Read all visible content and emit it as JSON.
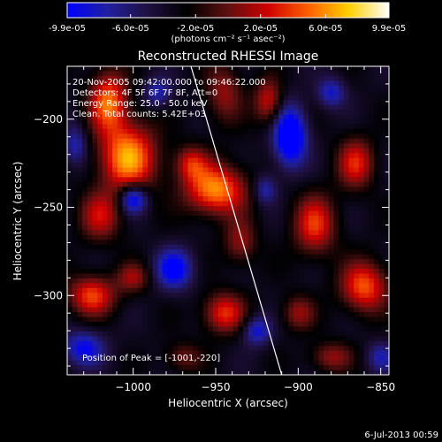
{
  "colorbar": {
    "tick_labels": [
      "-9.9e-05",
      "-6.0e-05",
      "-2.0e-05",
      "2.0e-05",
      "6.0e-05",
      "9.9e-05"
    ],
    "tick_values": [
      -9.9e-05,
      -6e-05,
      -2e-05,
      2e-05,
      6e-05,
      9.9e-05
    ],
    "range": [
      -9.9e-05,
      9.9e-05
    ],
    "units": "(photons cm⁻² s⁻¹ asec⁻²)",
    "colors": [
      "#0000ff",
      "#2020a0",
      "#201040",
      "#000000",
      "#601010",
      "#d00000",
      "#ff6000",
      "#ffd000",
      "#ffffff"
    ]
  },
  "chart_data": {
    "type": "heatmap",
    "title": "Reconstructed RHESSI Image",
    "xlabel": "Heliocentric X (arcsec)",
    "ylabel": "Heliocentric Y (arcsec)",
    "xlim": [
      -1040,
      -845
    ],
    "ylim": [
      -345,
      -170
    ],
    "x_ticks": [
      -1000,
      -950,
      -900,
      -850
    ],
    "x_tick_labels": [
      "−1000",
      "−950",
      "−900",
      "−850"
    ],
    "y_ticks": [
      -200,
      -250,
      -300
    ],
    "y_tick_labels": [
      "−200",
      "−250",
      "−300"
    ],
    "annotations": [
      "20-Nov-2005 09:42:00.000 to 09:46:22.000",
      "Detectors: 4F 5F 6F 7F 8F, Att=0",
      "Energy Range: 25.0 - 50.0 keV",
      "Clean.  Total counts: 5.42E+03"
    ],
    "peak_label": "Position of Peak = [-1001,-220]",
    "peak": {
      "x": -1001,
      "y": -220
    },
    "limb_line": [
      [
        -965,
        -170
      ],
      [
        -910,
        -345
      ]
    ],
    "blobs": [
      {
        "x": -1003,
        "y": -222,
        "sx": 12,
        "sy": 14,
        "a": 1.0
      },
      {
        "x": -1015,
        "y": -190,
        "sx": 8,
        "sy": 12,
        "a": 0.85
      },
      {
        "x": -1020,
        "y": -255,
        "sx": 9,
        "sy": 10,
        "a": 0.55
      },
      {
        "x": -1025,
        "y": -300,
        "sx": 10,
        "sy": 8,
        "a": 0.75
      },
      {
        "x": -1000,
        "y": -290,
        "sx": 7,
        "sy": 6,
        "a": 0.45
      },
      {
        "x": -950,
        "y": -240,
        "sx": 13,
        "sy": 10,
        "a": 0.95
      },
      {
        "x": -965,
        "y": -225,
        "sx": 7,
        "sy": 7,
        "a": 0.55
      },
      {
        "x": -945,
        "y": -185,
        "sx": 8,
        "sy": 12,
        "a": 0.45
      },
      {
        "x": -945,
        "y": -310,
        "sx": 9,
        "sy": 8,
        "a": 0.7
      },
      {
        "x": -935,
        "y": -270,
        "sx": 7,
        "sy": 9,
        "a": 0.45
      },
      {
        "x": -918,
        "y": -190,
        "sx": 6,
        "sy": 9,
        "a": 0.6
      },
      {
        "x": -890,
        "y": -260,
        "sx": 9,
        "sy": 12,
        "a": 0.7
      },
      {
        "x": -865,
        "y": -225,
        "sx": 8,
        "sy": 10,
        "a": 0.65
      },
      {
        "x": -860,
        "y": -295,
        "sx": 10,
        "sy": 10,
        "a": 0.8
      },
      {
        "x": -900,
        "y": -310,
        "sx": 7,
        "sy": 7,
        "a": 0.45
      },
      {
        "x": -880,
        "y": -335,
        "sx": 9,
        "sy": 6,
        "a": 0.45
      },
      {
        "x": -970,
        "y": -335,
        "sx": 8,
        "sy": 6,
        "a": 0.35
      },
      {
        "x": -1000,
        "y": -245,
        "sx": 6,
        "sy": 6,
        "a": -0.8
      },
      {
        "x": -975,
        "y": -285,
        "sx": 8,
        "sy": 8,
        "a": -0.7
      },
      {
        "x": -905,
        "y": -210,
        "sx": 7,
        "sy": 12,
        "a": -0.95
      },
      {
        "x": -1030,
        "y": -330,
        "sx": 9,
        "sy": 7,
        "a": -0.6
      },
      {
        "x": -925,
        "y": -320,
        "sx": 6,
        "sy": 6,
        "a": -0.55
      },
      {
        "x": -880,
        "y": -185,
        "sx": 6,
        "sy": 6,
        "a": -0.5
      },
      {
        "x": -985,
        "y": -185,
        "sx": 6,
        "sy": 6,
        "a": -0.45
      },
      {
        "x": -1035,
        "y": -215,
        "sx": 5,
        "sy": 8,
        "a": -0.45
      },
      {
        "x": -920,
        "y": -240,
        "sx": 5,
        "sy": 6,
        "a": -0.45
      },
      {
        "x": -850,
        "y": -335,
        "sx": 6,
        "sy": 6,
        "a": -0.4
      }
    ]
  },
  "footer": {
    "date": "6-Jul-2013 00:59"
  }
}
